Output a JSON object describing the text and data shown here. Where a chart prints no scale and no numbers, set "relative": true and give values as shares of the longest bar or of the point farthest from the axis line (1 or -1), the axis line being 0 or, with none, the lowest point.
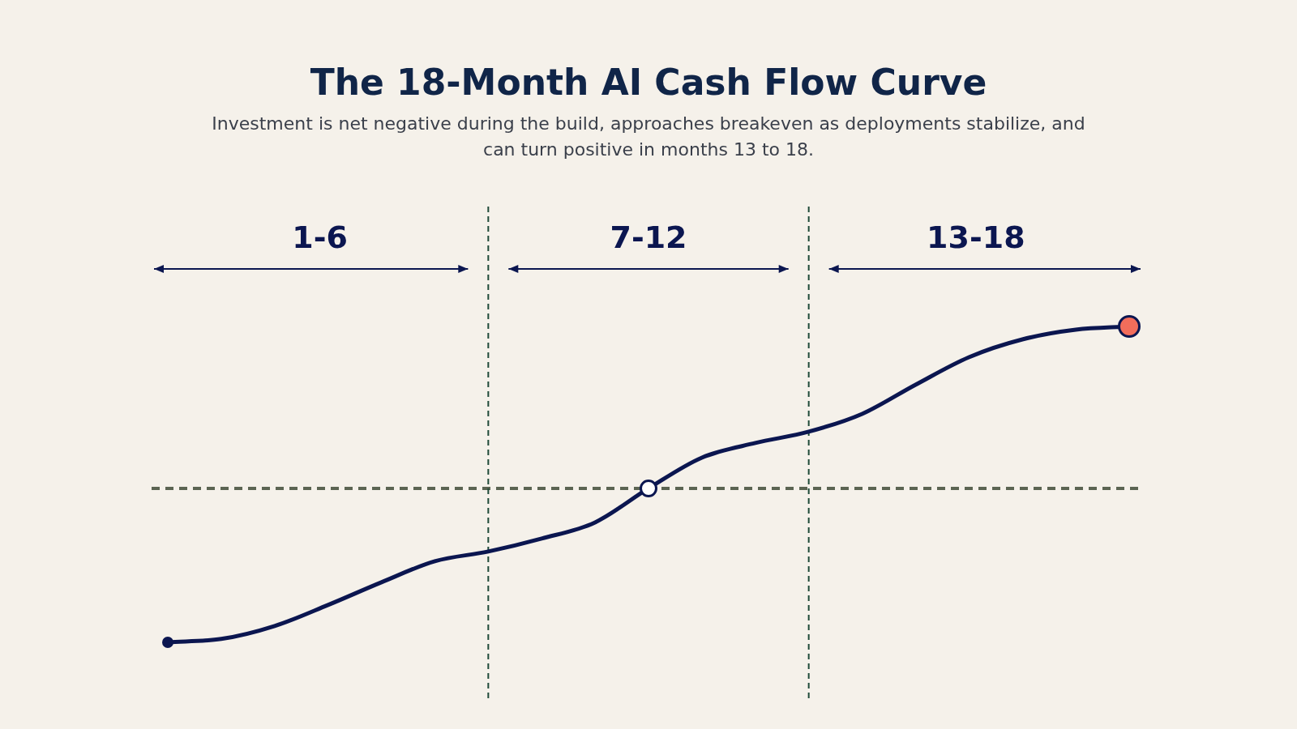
{
  "chart_data": {
    "type": "line",
    "title": "The 18-Month AI Cash Flow Curve",
    "subtitle": "Investment is net negative during the build, approaches breakeven as deployments stabilize, and can turn positive in months 13 to 18.",
    "relative": true,
    "categories": [
      null,
      null,
      null,
      null,
      null,
      null,
      null,
      null,
      null,
      null,
      null,
      null,
      null,
      null,
      null,
      null,
      null,
      null,
      null
    ],
    "annotations": [
      "1-6",
      "7-12",
      "13-18"
    ],
    "ref_lines": [
      {
        "axis": "y",
        "value": 0,
        "color": "#5b6452",
        "line_style": "dashed"
      }
    ],
    "series": [
      {
        "color": "#0b1650",
        "values": [
          -0.95,
          -0.93,
          -0.85,
          -0.72,
          -0.58,
          -0.45,
          -0.39,
          -0.31,
          -0.21,
          0,
          0.19,
          0.28,
          0.35,
          0.46,
          0.64,
          0.81,
          0.92,
          0.98,
          1
        ]
      }
    ]
  }
}
